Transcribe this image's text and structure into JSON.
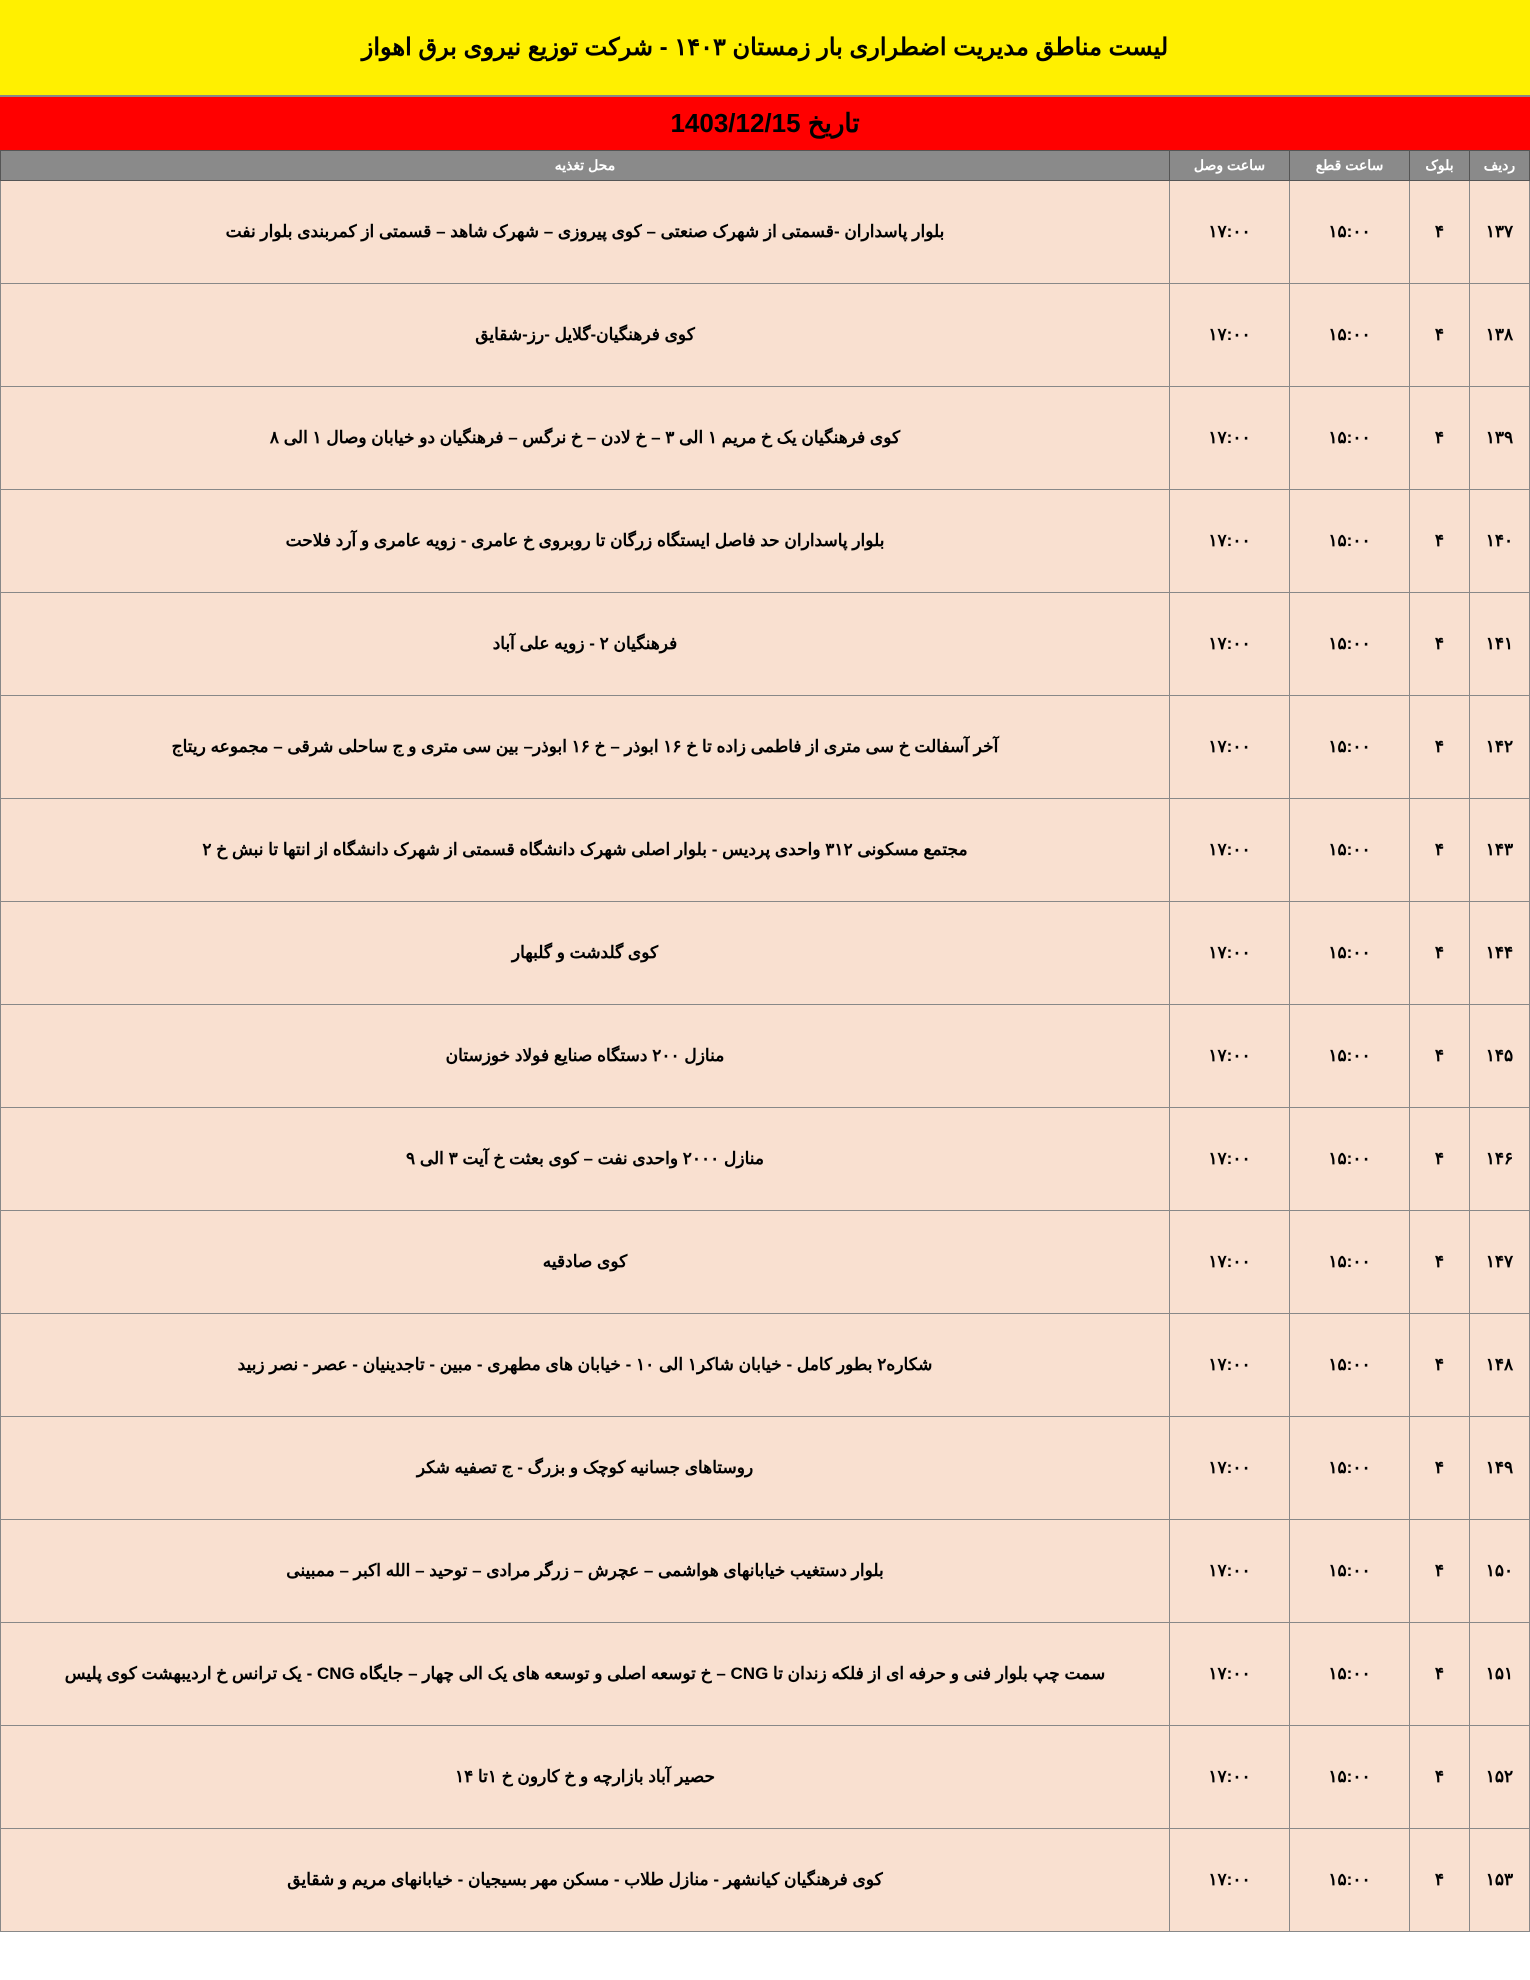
{
  "title": "لیست مناطق مدیریت اضطراری بار زمستان ۱۴۰۳ - شرکت توزیع نیروی برق اهواز",
  "date_label": "تاریخ 1403/12/15",
  "columns": {
    "row": "ردیف",
    "block": "بلوک",
    "off_time": "ساعت قطع",
    "on_time": "ساعت وصل",
    "location": "محل تغذیه"
  },
  "colors": {
    "title_bg": "#fff000",
    "date_bg": "#ff0000",
    "header_bg": "#8a8a8a",
    "header_fg": "#ffffff",
    "cell_bg": "#f9e0d0",
    "border": "#888888"
  },
  "rows": [
    {
      "row": "۱۳۷",
      "block": "۴",
      "off": "۱۵:۰۰",
      "on": "۱۷:۰۰",
      "loc": "بلوار پاسداران -قسمتی از شهرک صنعتی – کوی پیروزی – شهرک شاهد – قسمتی از کمربندی بلوار نفت"
    },
    {
      "row": "۱۳۸",
      "block": "۴",
      "off": "۱۵:۰۰",
      "on": "۱۷:۰۰",
      "loc": "کوی فرهنگیان-گلایل -رز-شقایق"
    },
    {
      "row": "۱۳۹",
      "block": "۴",
      "off": "۱۵:۰۰",
      "on": "۱۷:۰۰",
      "loc": "کوی فرهنگیان یک خ مریم ۱ الی ۳ – خ لادن – خ نرگس – فرهنگیان دو خیابان وصال ۱ الی ۸"
    },
    {
      "row": "۱۴۰",
      "block": "۴",
      "off": "۱۵:۰۰",
      "on": "۱۷:۰۰",
      "loc": "بلوار پاسداران حد فاصل ایستگاه زرگان تا روبروی خ عامری - زویه عامری و آرد فلاحت"
    },
    {
      "row": "۱۴۱",
      "block": "۴",
      "off": "۱۵:۰۰",
      "on": "۱۷:۰۰",
      "loc": "فرهنگیان ۲ - زویه علی آباد"
    },
    {
      "row": "۱۴۲",
      "block": "۴",
      "off": "۱۵:۰۰",
      "on": "۱۷:۰۰",
      "loc": "آخر آسفالت خ سی متری از فاطمی زاده تا خ ۱۶ ابوذر – خ ۱۶ ابوذر–  بین سی متری و ج ساحلی شرقی – مجموعه ریتاج"
    },
    {
      "row": "۱۴۳",
      "block": "۴",
      "off": "۱۵:۰۰",
      "on": "۱۷:۰۰",
      "loc": "مجتمع مسکونی ۳۱۲ واحدی پردیس  - بلوار اصلی شهرک دانشگاه قسمتی از شهرک دانشگاه از انتها تا نبش خ ۲"
    },
    {
      "row": "۱۴۴",
      "block": "۴",
      "off": "۱۵:۰۰",
      "on": "۱۷:۰۰",
      "loc": "کوی گلدشت و گلبهار"
    },
    {
      "row": "۱۴۵",
      "block": "۴",
      "off": "۱۵:۰۰",
      "on": "۱۷:۰۰",
      "loc": "منازل ۲۰۰ دستگاه صنایع فولاد خوزستان"
    },
    {
      "row": "۱۴۶",
      "block": "۴",
      "off": "۱۵:۰۰",
      "on": "۱۷:۰۰",
      "loc": "منازل ۲۰۰۰ واحدی نفت – کوی بعثت خ آیت ۳ الی ۹"
    },
    {
      "row": "۱۴۷",
      "block": "۴",
      "off": "۱۵:۰۰",
      "on": "۱۷:۰۰",
      "loc": "کوی صادقیه"
    },
    {
      "row": "۱۴۸",
      "block": "۴",
      "off": "۱۵:۰۰",
      "on": "۱۷:۰۰",
      "loc": "شکاره۲ بطور کامل - خیابان شاکر۱ الی ۱۰ - خیابان های مطهری - مبین - تاجدینیان - عصر - نصر زبید"
    },
    {
      "row": "۱۴۹",
      "block": "۴",
      "off": "۱۵:۰۰",
      "on": "۱۷:۰۰",
      "loc": "روستاهای جسانیه کوچک و بزرگ - ج تصفیه شکر"
    },
    {
      "row": "۱۵۰",
      "block": "۴",
      "off": "۱۵:۰۰",
      "on": "۱۷:۰۰",
      "loc": "بلوار دستغیب خیابانهای هواشمی – عچرش – زرگر مرادی – توحید – الله اکبر – ممبینی"
    },
    {
      "row": "۱۵۱",
      "block": "۴",
      "off": "۱۵:۰۰",
      "on": "۱۷:۰۰",
      "loc": "سمت چپ بلوار فنی و حرفه ای از فلکه زندان تا CNG – خ توسعه اصلی و توسعه های یک الی چهار – جایگاه CNG - یک ترانس خ اردیبهشت کوی پلیس"
    },
    {
      "row": "۱۵۲",
      "block": "۴",
      "off": "۱۵:۰۰",
      "on": "۱۷:۰۰",
      "loc": "حصیر آباد بازارچه و خ کارون خ ۱تا ۱۴"
    },
    {
      "row": "۱۵۳",
      "block": "۴",
      "off": "۱۵:۰۰",
      "on": "۱۷:۰۰",
      "loc": "کوی فرهنگیان کیانشهر - منازل طلاب - مسکن مهر بسیجیان - خیابانهای مریم و شقایق"
    }
  ]
}
